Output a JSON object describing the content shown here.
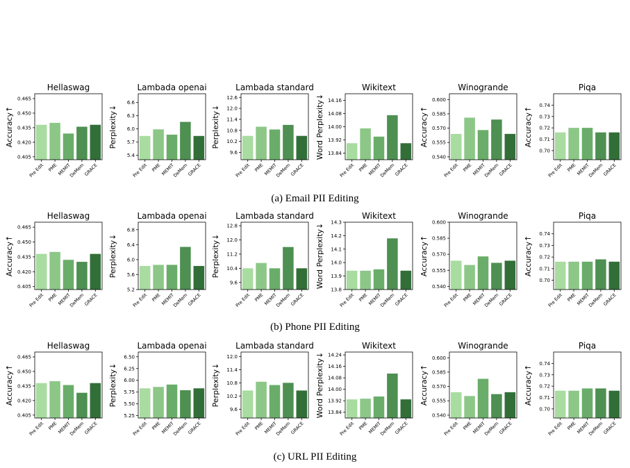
{
  "categories": [
    "Pre Edit",
    "PME",
    "MEMIT",
    "DeMem",
    "GRACE"
  ],
  "colors": [
    "#a8dca0",
    "#8cc788",
    "#6aad6a",
    "#4e8f52",
    "#326f38"
  ],
  "rows": [
    {
      "caption": "(a) Email PII Editing",
      "charts": [
        {
          "type": "bar",
          "title": "Hellaswag",
          "ylabel": "Accuracy↑",
          "ylim": [
            0.402,
            0.47
          ],
          "yticks": [
            "0.405",
            "0.420",
            "0.435",
            "0.450",
            "0.465"
          ],
          "values": [
            0.438,
            0.44,
            0.429,
            0.436,
            0.438
          ]
        },
        {
          "type": "bar",
          "title": "Lambada openai",
          "ylabel": "Perplexity↓",
          "ylim": [
            5.3,
            6.8
          ],
          "yticks": [
            "5.4",
            "5.7",
            "6.0",
            "6.3",
            "6.6"
          ],
          "values": [
            5.84,
            5.99,
            5.87,
            6.16,
            5.84
          ]
        },
        {
          "type": "bar",
          "title": "Lambada standard",
          "ylabel": "Perplexity↓",
          "ylim": [
            9.2,
            12.8
          ],
          "yticks": [
            "9.6",
            "10.2",
            "10.8",
            "11.4",
            "12.0",
            "12.6"
          ],
          "values": [
            10.5,
            11.0,
            10.85,
            11.1,
            10.5
          ]
        },
        {
          "type": "bar",
          "title": "Wikitext",
          "ylabel": "Word Perplexity↓",
          "ylim": [
            13.8,
            14.2
          ],
          "yticks": [
            "13.84",
            "13.92",
            "14.00",
            "14.08",
            "14.16"
          ],
          "values": [
            13.9,
            13.99,
            13.94,
            14.07,
            13.9
          ]
        },
        {
          "type": "bar",
          "title": "Winogrande",
          "ylabel": "Accuracy↑",
          "ylim": [
            0.537,
            0.606
          ],
          "yticks": [
            "0.540",
            "0.555",
            "0.570",
            "0.585",
            "0.600"
          ],
          "values": [
            0.564,
            0.581,
            0.568,
            0.579,
            0.564
          ]
        },
        {
          "type": "bar",
          "title": "Piqa",
          "ylabel": "Accuracy↑",
          "ylim": [
            0.692,
            0.75
          ],
          "yticks": [
            "0.70",
            "0.71",
            "0.72",
            "0.73",
            "0.74"
          ],
          "values": [
            0.716,
            0.72,
            0.72,
            0.716,
            0.716
          ]
        }
      ]
    },
    {
      "caption": "(b) Phone PII Editing",
      "charts": [
        {
          "type": "bar",
          "title": "Hellaswag",
          "ylabel": "Accuracy↑",
          "ylim": [
            0.402,
            0.47
          ],
          "yticks": [
            "0.405",
            "0.420",
            "0.435",
            "0.450",
            "0.465"
          ],
          "values": [
            0.438,
            0.44,
            0.432,
            0.43,
            0.438
          ]
        },
        {
          "type": "bar",
          "title": "Lambada openai",
          "ylabel": "Perplexity↓",
          "ylim": [
            5.2,
            7.0
          ],
          "yticks": [
            "5.2",
            "5.6",
            "6.0",
            "6.4",
            "6.8"
          ],
          "values": [
            5.83,
            5.86,
            5.86,
            6.34,
            5.83
          ]
        },
        {
          "type": "bar",
          "title": "Lambada standard",
          "ylabel": "Perplexity↓",
          "ylim": [
            9.2,
            13.0
          ],
          "yticks": [
            "9.6",
            "10.4",
            "11.2",
            "12.0",
            "12.8"
          ],
          "values": [
            10.4,
            10.7,
            10.4,
            11.6,
            10.4
          ]
        },
        {
          "type": "bar",
          "title": "Wikitext",
          "ylabel": "Word Perplexity↓",
          "ylim": [
            13.8,
            14.3
          ],
          "yticks": [
            "13.8",
            "13.9",
            "14.0",
            "14.1",
            "14.2",
            "14.3"
          ],
          "values": [
            13.94,
            13.94,
            13.95,
            14.18,
            13.94
          ]
        },
        {
          "type": "bar",
          "title": "Winogrande",
          "ylabel": "Accuracy↑",
          "ylim": [
            0.537,
            0.6
          ],
          "yticks": [
            "0.540",
            "0.555",
            "0.570",
            "0.585",
            "0.600"
          ],
          "values": [
            0.564,
            0.56,
            0.568,
            0.562,
            0.564
          ]
        },
        {
          "type": "bar",
          "title": "Piqa",
          "ylabel": "Accuracy↑",
          "ylim": [
            0.692,
            0.75
          ],
          "yticks": [
            "0.70",
            "0.71",
            "0.72",
            "0.73",
            "0.74"
          ],
          "values": [
            0.716,
            0.716,
            0.716,
            0.718,
            0.716
          ]
        }
      ]
    },
    {
      "caption": "(c) URL PII Editing",
      "charts": [
        {
          "type": "bar",
          "title": "Hellaswag",
          "ylabel": "Accuracy↑",
          "ylim": [
            0.402,
            0.47
          ],
          "yticks": [
            "0.405",
            "0.420",
            "0.435",
            "0.450",
            "0.465"
          ],
          "values": [
            0.438,
            0.44,
            0.436,
            0.428,
            0.438
          ]
        },
        {
          "type": "bar",
          "title": "Lambada openai",
          "ylabel": "Perplexity↓",
          "ylim": [
            5.2,
            6.6
          ],
          "yticks": [
            "5.25",
            "5.50",
            "5.75",
            "6.00",
            "6.25",
            "6.50"
          ],
          "values": [
            5.83,
            5.86,
            5.91,
            5.79,
            5.83
          ]
        },
        {
          "type": "bar",
          "title": "Lambada standard",
          "ylabel": "Perplexity↓",
          "ylim": [
            9.2,
            12.2
          ],
          "yticks": [
            "9.6",
            "10.2",
            "10.8",
            "11.4",
            "12.0"
          ],
          "values": [
            10.45,
            10.85,
            10.7,
            10.8,
            10.45
          ]
        },
        {
          "type": "bar",
          "title": "Wikitext",
          "ylabel": "Word Perplexity↓",
          "ylim": [
            13.8,
            14.26
          ],
          "yticks": [
            "13.84",
            "13.92",
            "14.00",
            "14.08",
            "14.16",
            "14.24"
          ],
          "values": [
            13.93,
            13.935,
            13.95,
            14.11,
            13.93
          ]
        },
        {
          "type": "bar",
          "title": "Winogrande",
          "ylabel": "Accuracy↑",
          "ylim": [
            0.537,
            0.606
          ],
          "yticks": [
            "0.540",
            "0.555",
            "0.570",
            "0.585",
            "0.600"
          ],
          "values": [
            0.564,
            0.56,
            0.578,
            0.562,
            0.564
          ]
        },
        {
          "type": "bar",
          "title": "Piqa",
          "ylabel": "Accuracy↑",
          "ylim": [
            0.692,
            0.75
          ],
          "yticks": [
            "0.70",
            "0.71",
            "0.72",
            "0.73",
            "0.74"
          ],
          "values": [
            0.716,
            0.716,
            0.718,
            0.718,
            0.716
          ]
        }
      ]
    }
  ]
}
